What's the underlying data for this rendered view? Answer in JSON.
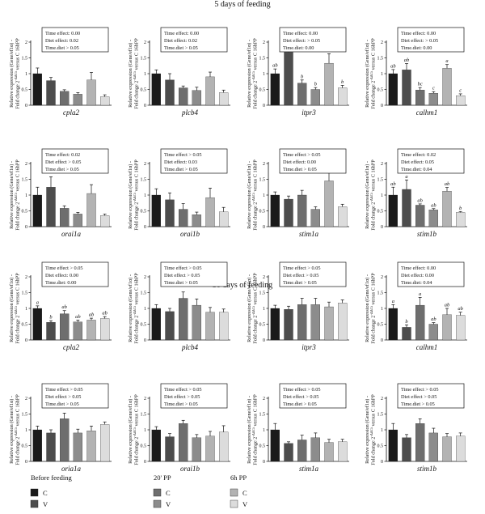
{
  "sections": [
    {
      "title": "5 days of feeding"
    },
    {
      "title": "30 days of feeding"
    }
  ],
  "y_label_line1": "Relative expression (Gene/ef1α) -",
  "y_label_line2_a": "Fold change 2",
  "y_label_sup": "-ΔΔCt",
  "y_label_line2_b": " versus C 16hPP",
  "colors": {
    "bars": [
      "#1a1a1a",
      "#4d4d4d",
      "#6e6e6e",
      "#8c8c8c",
      "#b3b3b3",
      "#dcdcdc"
    ]
  },
  "legend": {
    "groups": [
      {
        "title": "Before feeding",
        "items": [
          "C",
          "V"
        ]
      },
      {
        "title": "20' PP",
        "items": [
          "C",
          "V"
        ]
      },
      {
        "title": "6h PP",
        "items": [
          "C",
          "V"
        ]
      }
    ]
  },
  "chart_data": [
    {
      "type": "bar",
      "gene": "cpla2",
      "section": 0,
      "ylim": [
        0,
        2.0
      ],
      "yticks": [
        "0",
        "0.5",
        "1",
        "1.5",
        "2"
      ],
      "ticks": [
        0,
        0.5,
        1,
        1.5,
        2
      ],
      "categories": [
        "C",
        "V",
        "C",
        "V",
        "C",
        "V"
      ],
      "values": [
        1.0,
        0.78,
        0.44,
        0.35,
        0.8,
        0.27
      ],
      "errors": [
        0.18,
        0.1,
        0.05,
        0.05,
        0.24,
        0.06
      ],
      "letters": [],
      "stats": [
        "Time effect: 0.00",
        "Diet effect: 0.02",
        "Time.diet > 0.05"
      ]
    },
    {
      "type": "bar",
      "gene": "plcb4",
      "section": 0,
      "ylim": [
        0,
        2.0
      ],
      "yticks": [
        "0",
        "0.5",
        "1",
        "1.5",
        "2"
      ],
      "ticks": [
        0,
        0.5,
        1,
        1.5,
        2
      ],
      "categories": [
        "C",
        "V",
        "C",
        "V",
        "C",
        "V"
      ],
      "values": [
        1.0,
        0.8,
        0.55,
        0.47,
        0.9,
        0.4
      ],
      "errors": [
        0.12,
        0.2,
        0.06,
        0.1,
        0.15,
        0.08
      ],
      "letters": [],
      "stats": [
        "Time effect: 0.00",
        "Diet effect: 0.02",
        "Time.diet > 0.05"
      ]
    },
    {
      "type": "bar",
      "gene": "itpr3",
      "section": 0,
      "ylim": [
        0,
        2.0
      ],
      "yticks": [
        "0",
        "0.5",
        "1",
        "1.5",
        "2"
      ],
      "ticks": [
        0,
        0.5,
        1,
        1.5,
        2
      ],
      "categories": [
        "C",
        "V",
        "C",
        "V",
        "C",
        "V"
      ],
      "values": [
        1.0,
        1.68,
        0.7,
        0.5,
        1.33,
        0.55
      ],
      "errors": [
        0.15,
        0.3,
        0.1,
        0.06,
        0.3,
        0.08
      ],
      "letters": [
        "ab",
        "a",
        "b",
        "b",
        "ab",
        "b"
      ],
      "stats": [
        "Time effect: 0.00",
        "Diet effect: > 0.05",
        "Time.diet: 0.00"
      ]
    },
    {
      "type": "bar",
      "gene": "calhm1",
      "section": 0,
      "ylim": [
        0,
        2.0
      ],
      "yticks": [
        "0",
        "0.5",
        "1",
        "1.5",
        "2"
      ],
      "ticks": [
        0,
        0.5,
        1,
        1.5,
        2
      ],
      "categories": [
        "C",
        "V",
        "C",
        "V",
        "C",
        "V"
      ],
      "values": [
        1.0,
        1.12,
        0.48,
        0.38,
        1.17,
        0.3
      ],
      "errors": [
        0.13,
        0.2,
        0.08,
        0.05,
        0.12,
        0.06
      ],
      "letters": [
        "ab",
        "ab",
        "bc",
        "c",
        "a",
        "c"
      ],
      "stats": [
        "Time effect: 0.00",
        "Diet effect: > 0.05",
        "Time.diet: 0.00"
      ]
    },
    {
      "type": "bar",
      "gene": "orai1a",
      "section": 0,
      "ylim": [
        0,
        2.0
      ],
      "yticks": [
        "0",
        "0.5",
        "1",
        "1.5",
        "2"
      ],
      "ticks": [
        0,
        0.5,
        1,
        1.5,
        2
      ],
      "categories": [
        "C",
        "V",
        "C",
        "V",
        "C",
        "V"
      ],
      "values": [
        1.0,
        1.25,
        0.58,
        0.4,
        1.05,
        0.35
      ],
      "errors": [
        0.25,
        0.33,
        0.08,
        0.05,
        0.28,
        0.05
      ],
      "letters": [],
      "stats": [
        "Time effect: 0.02",
        "Diet effect > 0.05",
        "Time.diet > 0.05"
      ]
    },
    {
      "type": "bar",
      "gene": "orai1b",
      "section": 0,
      "ylim": [
        0,
        2.0
      ],
      "yticks": [
        "0",
        "0.5",
        "1",
        "1.5",
        "2"
      ],
      "ticks": [
        0,
        0.5,
        1,
        1.5,
        2
      ],
      "categories": [
        "C",
        "V",
        "C",
        "V",
        "C",
        "V"
      ],
      "values": [
        1.0,
        0.85,
        0.55,
        0.38,
        0.92,
        0.47
      ],
      "errors": [
        0.2,
        0.22,
        0.18,
        0.08,
        0.3,
        0.14
      ],
      "letters": [],
      "stats": [
        "Time effect > 0.05",
        "Diet effect: 0.03",
        "Time.diet > 0.05"
      ]
    },
    {
      "type": "bar",
      "gene": "stim1a",
      "section": 0,
      "ylim": [
        0,
        2.0
      ],
      "yticks": [
        "0",
        "0.5",
        "1",
        "1.5",
        "2"
      ],
      "ticks": [
        0,
        0.5,
        1,
        1.5,
        2
      ],
      "categories": [
        "C",
        "V",
        "C",
        "V",
        "C",
        "V"
      ],
      "values": [
        1.0,
        0.87,
        1.0,
        0.55,
        1.45,
        0.63
      ],
      "errors": [
        0.1,
        0.1,
        0.15,
        0.08,
        0.25,
        0.08
      ],
      "letters": [],
      "stats": [
        "Time effect > 0.05",
        "Diet effect: 0.00",
        "Time.diet > 0.05"
      ]
    },
    {
      "type": "bar",
      "gene": "stim1b",
      "section": 0,
      "ylim": [
        0,
        2.0
      ],
      "yticks": [
        "0",
        "0.5",
        "1",
        "1.5",
        "2"
      ],
      "ticks": [
        0,
        0.5,
        1,
        1.5,
        2
      ],
      "categories": [
        "C",
        "V",
        "C",
        "V",
        "C",
        "V"
      ],
      "values": [
        1.0,
        1.18,
        0.68,
        0.53,
        1.12,
        0.45
      ],
      "errors": [
        0.25,
        0.3,
        0.04,
        0.04,
        0.12,
        0.03
      ],
      "letters": [
        "ab",
        "a",
        "ab",
        "ab",
        "ab",
        "b"
      ],
      "stats": [
        "Time effect: 0.02",
        "Diet effect: 0.05",
        "Time.diet: 0.04"
      ]
    },
    {
      "type": "bar",
      "gene": "cpla2",
      "section": 1,
      "ylim": [
        0,
        2.0
      ],
      "yticks": [
        "0",
        "0.5",
        "1",
        "1.5",
        "2"
      ],
      "ticks": [
        0,
        0.5,
        1,
        1.5,
        2
      ],
      "categories": [
        "C",
        "V",
        "C",
        "V",
        "C",
        "V"
      ],
      "values": [
        1.0,
        0.56,
        0.83,
        0.57,
        0.63,
        0.68
      ],
      "errors": [
        0.08,
        0.05,
        0.1,
        0.06,
        0.06,
        0.06
      ],
      "letters": [
        "a",
        "b",
        "ab",
        "ab",
        "ab",
        "ab"
      ],
      "stats": [
        "Time effect > 0.05",
        "Diet effect: 0.00",
        "Time.diet: 0.00"
      ]
    },
    {
      "type": "bar",
      "gene": "plcb4",
      "section": 1,
      "ylim": [
        0,
        2.0
      ],
      "yticks": [
        "0",
        "0.5",
        "1",
        "1.5",
        "2"
      ],
      "ticks": [
        0,
        0.5,
        1,
        1.5,
        2
      ],
      "categories": [
        "C",
        "V",
        "C",
        "V",
        "C",
        "V"
      ],
      "values": [
        1.0,
        0.9,
        1.32,
        1.1,
        0.88,
        0.88
      ],
      "errors": [
        0.12,
        0.1,
        0.2,
        0.2,
        0.15,
        0.1
      ],
      "letters": [],
      "stats": [
        "Time effect > 0.05",
        "Diet effect > 0.05",
        "Time.diet > 0.05"
      ]
    },
    {
      "type": "bar",
      "gene": "itpr3",
      "section": 1,
      "ylim": [
        0,
        2.0
      ],
      "yticks": [
        "0",
        "0.5",
        "1",
        "1.5",
        "2"
      ],
      "ticks": [
        0,
        0.5,
        1,
        1.5,
        2
      ],
      "categories": [
        "C",
        "V",
        "C",
        "V",
        "C",
        "V"
      ],
      "values": [
        1.0,
        0.97,
        1.12,
        1.12,
        1.05,
        1.17
      ],
      "errors": [
        0.1,
        0.1,
        0.2,
        0.2,
        0.15,
        0.1
      ],
      "letters": [],
      "stats": [
        "Time effect > 0.05",
        "Diet effect > 0.05",
        "Time.diet > 0.05"
      ]
    },
    {
      "type": "bar",
      "gene": "calhm1",
      "section": 1,
      "ylim": [
        0,
        2.0
      ],
      "yticks": [
        "0",
        "0.5",
        "1",
        "1.5",
        "2"
      ],
      "ticks": [
        0,
        0.5,
        1,
        1.5,
        2
      ],
      "categories": [
        "C",
        "V",
        "C",
        "V",
        "C",
        "V"
      ],
      "values": [
        1.0,
        0.4,
        1.1,
        0.5,
        0.8,
        0.78
      ],
      "errors": [
        0.12,
        0.08,
        0.25,
        0.05,
        0.2,
        0.1
      ],
      "letters": [
        "a",
        "b",
        "a",
        "ab",
        "ab",
        "ab"
      ],
      "stats": [
        "Time effect: 0.00",
        "Diet effect: 0.00",
        "Time.diet: 0.04"
      ]
    },
    {
      "type": "bar",
      "gene": "oria1a",
      "section": 1,
      "ylim": [
        0,
        2.0
      ],
      "yticks": [
        "0",
        "0.5",
        "1",
        "1.5",
        "2"
      ],
      "ticks": [
        0,
        0.5,
        1,
        1.5,
        2
      ],
      "categories": [
        "C",
        "V",
        "C",
        "V",
        "C",
        "V"
      ],
      "values": [
        1.0,
        0.9,
        1.35,
        0.9,
        0.97,
        1.17
      ],
      "errors": [
        0.12,
        0.1,
        0.18,
        0.12,
        0.15,
        0.08
      ],
      "letters": [],
      "stats": [
        "Time effect > 0.05",
        "Diet effect > 0.05",
        "Time.diet > 0.05"
      ]
    },
    {
      "type": "bar",
      "gene": "orai1b",
      "section": 1,
      "ylim": [
        0,
        2.0
      ],
      "yticks": [
        "0",
        "0.5",
        "1",
        "1.5",
        "2"
      ],
      "ticks": [
        0,
        0.5,
        1,
        1.5,
        2
      ],
      "categories": [
        "C",
        "V",
        "C",
        "V",
        "C",
        "V"
      ],
      "values": [
        1.0,
        0.78,
        1.2,
        0.75,
        0.8,
        0.93
      ],
      "errors": [
        0.1,
        0.1,
        0.1,
        0.1,
        0.15,
        0.2
      ],
      "letters": [],
      "stats": [
        "Time effect > 0.05",
        "Diet effect > 0.05",
        "Time.diet > 0.05"
      ]
    },
    {
      "type": "bar",
      "gene": "stim1a",
      "section": 1,
      "ylim": [
        0,
        2.0
      ],
      "yticks": [
        "0",
        "0.5",
        "1",
        "1.5",
        "2"
      ],
      "ticks": [
        0,
        0.5,
        1,
        1.5,
        2
      ],
      "categories": [
        "C",
        "V",
        "C",
        "V",
        "C",
        "V"
      ],
      "values": [
        1.0,
        0.57,
        0.68,
        0.75,
        0.6,
        0.62
      ],
      "errors": [
        0.2,
        0.05,
        0.15,
        0.15,
        0.1,
        0.08
      ],
      "letters": [],
      "stats": [
        "Time effect > 0.05",
        "Diet effect > 0.05",
        "Time.diet > 0.05"
      ]
    },
    {
      "type": "bar",
      "gene": "stim1b",
      "section": 1,
      "ylim": [
        0,
        2.0
      ],
      "yticks": [
        "0",
        "0.5",
        "1",
        "1.5",
        "2"
      ],
      "ticks": [
        0,
        0.5,
        1,
        1.5,
        2
      ],
      "categories": [
        "C",
        "V",
        "C",
        "V",
        "C",
        "V"
      ],
      "values": [
        1.0,
        0.75,
        1.2,
        0.9,
        0.78,
        0.8
      ],
      "errors": [
        0.2,
        0.1,
        0.15,
        0.15,
        0.1,
        0.1
      ],
      "letters": [],
      "stats": [
        "Time effect > 0.05",
        "Diet effect > 0.05",
        "Time.diet > 0.05"
      ]
    }
  ]
}
